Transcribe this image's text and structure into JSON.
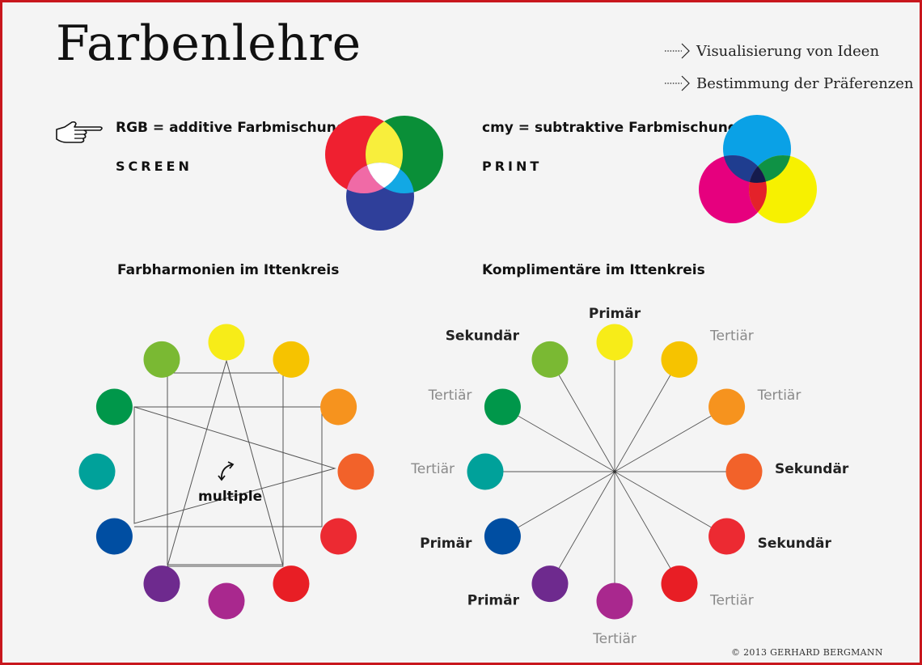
{
  "title": "Farbenlehre",
  "bullets": [
    {
      "text": "Visualisierung von Ideen",
      "icon": "dotted-arrow-icon"
    },
    {
      "text": "Bestimmung der Präferenzen",
      "icon": "dotted-arrow-icon"
    }
  ],
  "rgb": {
    "heading": "RGB = additive Farbmischung",
    "medium": "SCREEN",
    "icon": "pointing-hand-icon",
    "colors": {
      "red": "#ef2030",
      "green": "#0a8f38",
      "blue": "#2f3f9a",
      "yellow": "#f8ee3c",
      "magenta": "#f06aa6",
      "cyan": "#12a8e4",
      "white": "#ffffff"
    }
  },
  "cmy": {
    "heading": "cmy = subtraktive Farbmischung",
    "medium": "PRINT",
    "colors": {
      "cyan": "#0aa1e6",
      "magenta": "#e6007e",
      "yellow": "#f7f100",
      "blue": "#1f3d8f",
      "green": "#0f9245",
      "red": "#e4222a",
      "black": "#151b4d"
    }
  },
  "harmony": {
    "heading": "Farbharmonien im Ittenkreis",
    "center_label": "multiple",
    "icon": "curved-arrows-icon"
  },
  "complement": {
    "heading": "Komplimentäre im Ittenkreis",
    "labels": [
      "Primär",
      "Tertiär",
      "Tertiär",
      "Sekundär",
      "Sekundär",
      "Tertiär",
      "Tertiär",
      "Primär",
      "Primär",
      "Tertiär",
      "Tertiär",
      "Sekundär"
    ]
  },
  "wheel_colors": [
    "#f7ec18",
    "#f6c300",
    "#f6931e",
    "#f2622a",
    "#ec2a32",
    "#e81e25",
    "#a9288e",
    "#6e2a8e",
    "#004ea2",
    "#00a19a",
    "#00974a",
    "#7ab933"
  ],
  "credit": "© 2013 GERHARD BERGMANN"
}
